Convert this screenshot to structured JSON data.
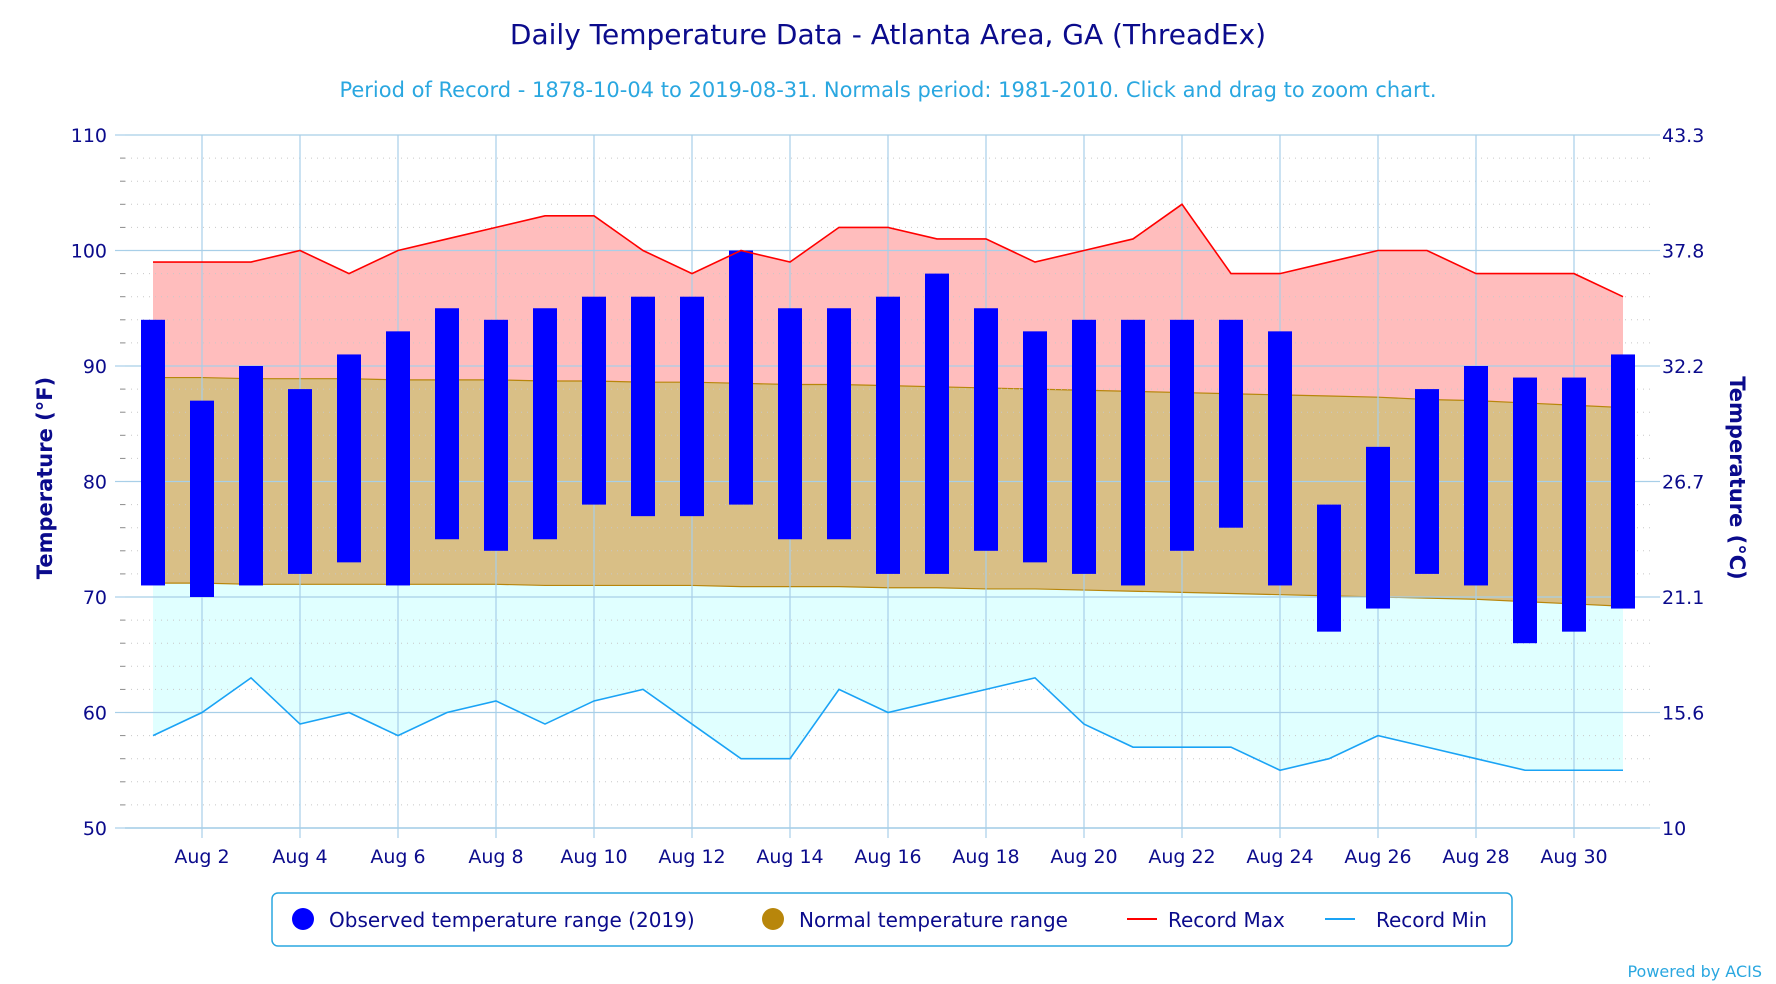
{
  "chart_data": {
    "type": "bar",
    "title": "Daily Temperature Data - Atlanta Area, GA (ThreadEx)",
    "subtitle": "Period of Record - 1878-10-04 to 2019-08-31. Normals period: 1981-2010. Click and drag to zoom chart.",
    "ylabel": "Temperature (°F)",
    "ylabel_right": "Temperature (°C)",
    "ylim": [
      50,
      110
    ],
    "xlim": [
      1,
      31
    ],
    "y_ticks": [
      50,
      60,
      70,
      80,
      90,
      100,
      110
    ],
    "y_ticks_right": [
      "10",
      "15.6",
      "21.1",
      "26.7",
      "32.2",
      "37.8",
      "43.3"
    ],
    "x_tick_labels": [
      {
        "day": 2,
        "label": "Aug 2"
      },
      {
        "day": 4,
        "label": "Aug 4"
      },
      {
        "day": 6,
        "label": "Aug 6"
      },
      {
        "day": 8,
        "label": "Aug 8"
      },
      {
        "day": 10,
        "label": "Aug 10"
      },
      {
        "day": 12,
        "label": "Aug 12"
      },
      {
        "day": 14,
        "label": "Aug 14"
      },
      {
        "day": 16,
        "label": "Aug 16"
      },
      {
        "day": 18,
        "label": "Aug 18"
      },
      {
        "day": 20,
        "label": "Aug 20"
      },
      {
        "day": 22,
        "label": "Aug 22"
      },
      {
        "day": 24,
        "label": "Aug 24"
      },
      {
        "day": 26,
        "label": "Aug 26"
      },
      {
        "day": 28,
        "label": "Aug 28"
      },
      {
        "day": 30,
        "label": "Aug 30"
      }
    ],
    "days": [
      1,
      2,
      3,
      4,
      5,
      6,
      7,
      8,
      9,
      10,
      11,
      12,
      13,
      14,
      15,
      16,
      17,
      18,
      19,
      20,
      21,
      22,
      23,
      24,
      25,
      26,
      27,
      28,
      29,
      30,
      31
    ],
    "series": [
      {
        "name": "Observed temperature range (2019)",
        "color": "#0000ff",
        "low": [
          71,
          70,
          71,
          72,
          73,
          71,
          75,
          74,
          75,
          78,
          77,
          77,
          78,
          75,
          75,
          72,
          72,
          74,
          73,
          72,
          71,
          74,
          76,
          71,
          67,
          69,
          72,
          71,
          66,
          67,
          69
        ],
        "high": [
          94,
          87,
          90,
          88,
          91,
          93,
          95,
          94,
          95,
          96,
          96,
          96,
          100,
          95,
          95,
          96,
          98,
          95,
          93,
          94,
          94,
          94,
          94,
          93,
          78,
          83,
          88,
          90,
          89,
          89,
          91
        ]
      },
      {
        "name": "Normal temperature range",
        "color": "#b8860b",
        "low": [
          71.2,
          71.2,
          71.1,
          71.1,
          71.1,
          71.1,
          71.1,
          71.1,
          71.0,
          71.0,
          71.0,
          71.0,
          70.9,
          70.9,
          70.9,
          70.8,
          70.8,
          70.7,
          70.7,
          70.6,
          70.5,
          70.4,
          70.3,
          70.2,
          70.1,
          70.0,
          69.9,
          69.8,
          69.6,
          69.4,
          69.2
        ],
        "high": [
          89.0,
          89.0,
          88.9,
          88.9,
          88.9,
          88.8,
          88.8,
          88.8,
          88.7,
          88.7,
          88.6,
          88.6,
          88.5,
          88.4,
          88.4,
          88.3,
          88.2,
          88.1,
          88.0,
          87.9,
          87.8,
          87.7,
          87.6,
          87.5,
          87.4,
          87.3,
          87.1,
          87.0,
          86.8,
          86.6,
          86.4
        ]
      },
      {
        "name": "Record Max",
        "color": "#ff0000",
        "values": [
          99,
          99,
          99,
          100,
          98,
          100,
          101,
          102,
          103,
          103,
          100,
          98,
          100,
          99,
          102,
          102,
          101,
          101,
          99,
          100,
          101,
          104,
          98,
          98,
          99,
          100,
          100,
          98,
          98,
          98,
          96
        ]
      },
      {
        "name": "Record Min",
        "color": "#1aa3f5",
        "values": [
          58,
          60,
          63,
          59,
          60,
          58,
          60,
          61,
          59,
          61,
          62,
          59,
          56,
          56,
          62,
          60,
          61,
          62,
          63,
          59,
          57,
          57,
          57,
          55,
          56,
          58,
          57,
          56,
          55,
          55,
          55
        ]
      }
    ],
    "grid": true,
    "legend_position": "bottom-center"
  },
  "colors": {
    "record_band": "#ffbdbd",
    "normal_band": "#d9bf86",
    "below_normal_band": "#e0ffff",
    "grid": "#a8cfe8",
    "axis_text": "#0b0b8c"
  },
  "credit": "Powered by ACIS"
}
